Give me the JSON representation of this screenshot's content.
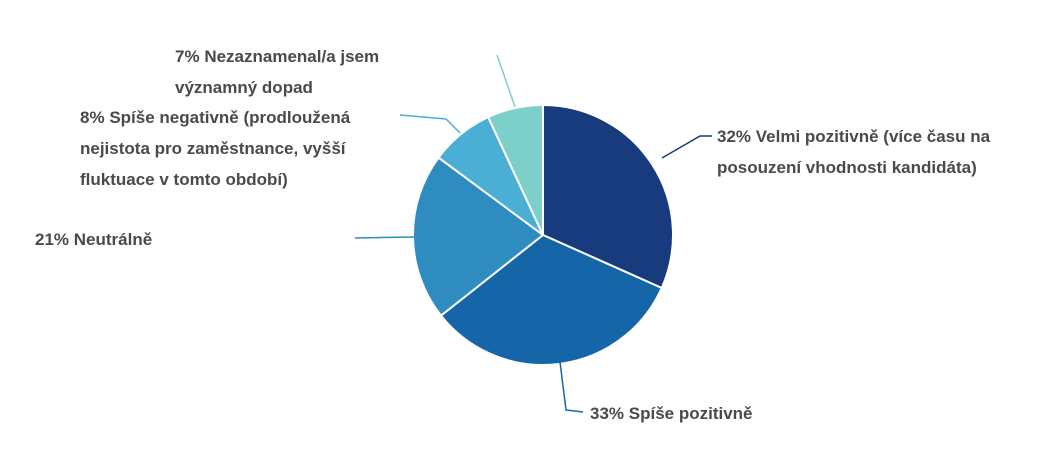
{
  "chart_data": {
    "type": "pie",
    "categories": [
      "Velmi pozitivně (více času na posouzení vhodnosti kandidáta)",
      "Spíše pozitivně",
      "Neutrálně",
      "Spíše negativně (prodloužená nejistota pro zaměstnance, vyšší fluktuace v tomto období)",
      "Nezaznamenal/a jsem významný dopad"
    ],
    "values": [
      32,
      33,
      21,
      8,
      7
    ],
    "value_labels": [
      "32%",
      "33%",
      "21%",
      "8%",
      "7%"
    ],
    "colors": [
      "#173b7c",
      "#1566a9",
      "#2e8cc1",
      "#4baed5",
      "#7dcfca"
    ]
  }
}
